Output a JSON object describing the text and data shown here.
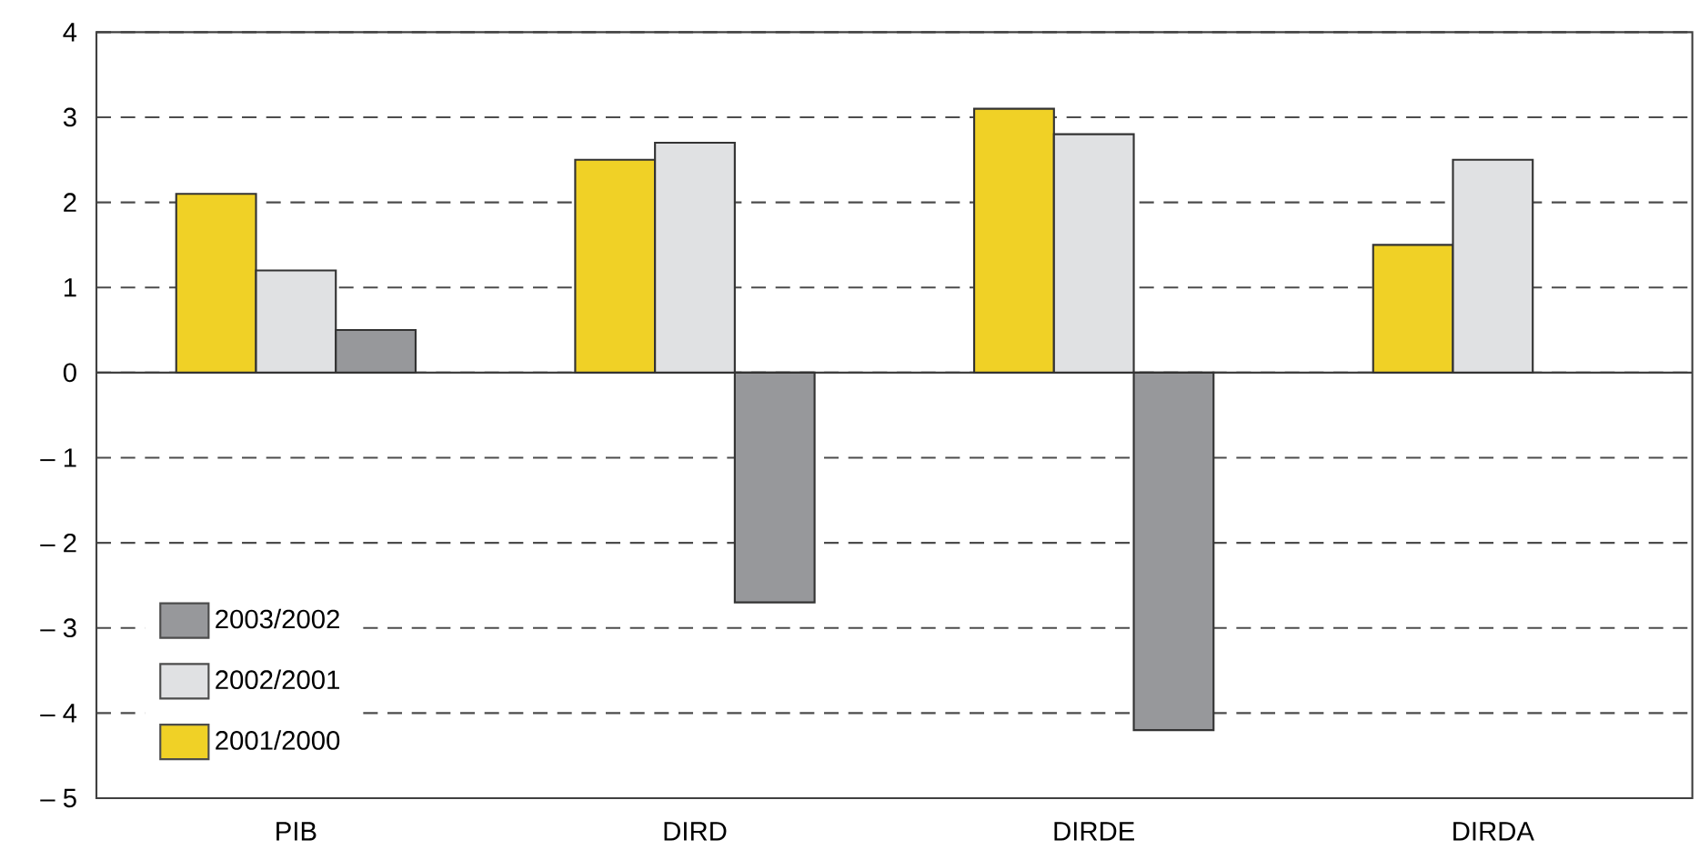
{
  "chart_data": {
    "type": "bar",
    "categories": [
      "PIB",
      "DIRD",
      "DIRDE",
      "DIRDA"
    ],
    "series": [
      {
        "name": "2001/2000",
        "color": "#f0d126",
        "values": [
          2.1,
          2.5,
          3.1,
          1.5
        ]
      },
      {
        "name": "2002/2001",
        "color": "#e0e1e3",
        "values": [
          1.2,
          2.7,
          2.8,
          2.5
        ]
      },
      {
        "name": "2003/2002",
        "color": "#97989b",
        "values": [
          0.5,
          -2.7,
          -4.2,
          null
        ]
      }
    ],
    "ylim": [
      -5,
      4
    ],
    "yticks": [
      {
        "value": -5,
        "label": "– 5"
      },
      {
        "value": -4,
        "label": "– 4"
      },
      {
        "value": -3,
        "label": "– 3"
      },
      {
        "value": -2,
        "label": "– 2"
      },
      {
        "value": -1,
        "label": "– 1"
      },
      0,
      1,
      2,
      3,
      4
    ],
    "grid": "y",
    "legend": "bottom left"
  }
}
